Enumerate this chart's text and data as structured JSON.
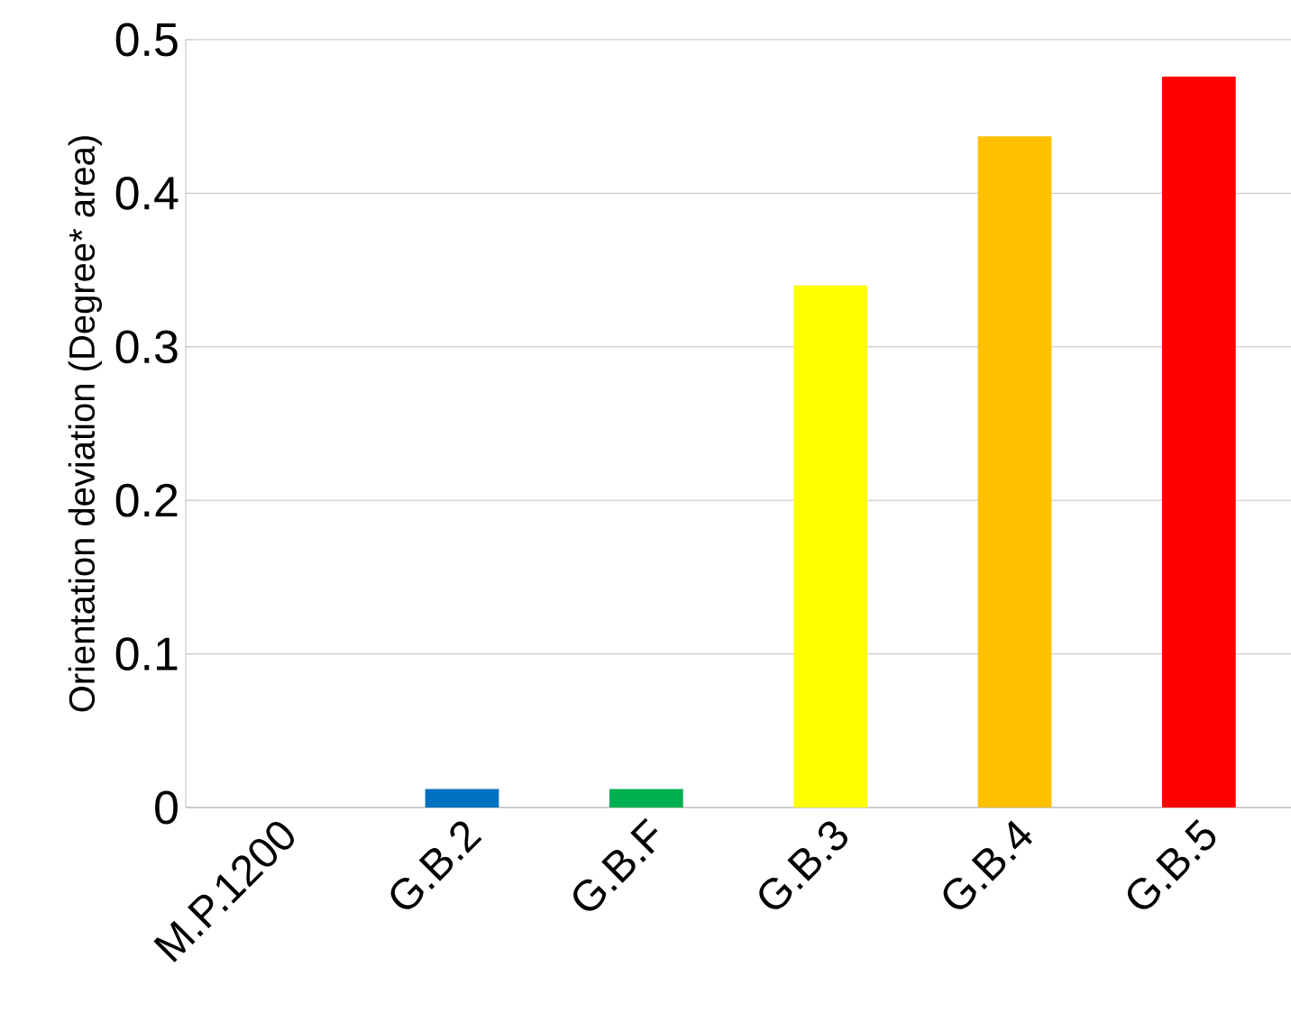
{
  "chart_data": {
    "type": "bar",
    "ylabel": "Orientation deviation (Degree* area)",
    "categories": [
      "M.P.1200",
      "G.B.2",
      "G.B.F",
      "G.B.3",
      "G.B.4",
      "G.B.5"
    ],
    "values": [
      0,
      0.012,
      0.012,
      0.34,
      0.437,
      0.476
    ],
    "colors": [
      "#4472c4",
      "#0070c0",
      "#00b050",
      "#ffff00",
      "#ffc000",
      "#ff0000"
    ],
    "ylim": [
      0,
      0.5
    ],
    "yticks": [
      0,
      0.1,
      0.2,
      0.3,
      0.4,
      0.5
    ],
    "grid": "y"
  }
}
